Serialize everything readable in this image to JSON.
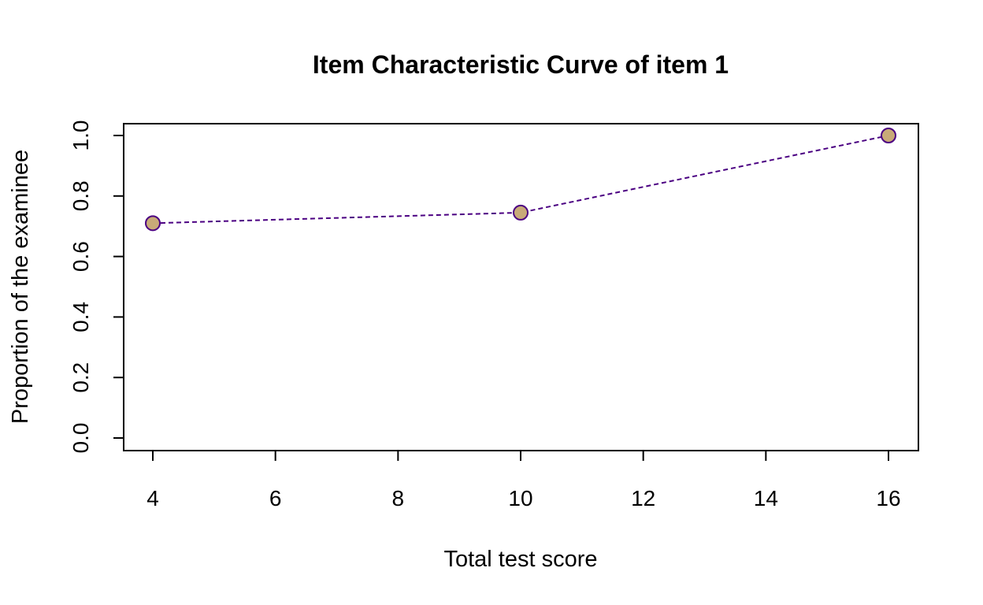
{
  "chart_data": {
    "type": "line",
    "title": "Item Characteristic Curve of item 1",
    "xlabel": "Total test score",
    "ylabel": "Proportion of the examinee",
    "xlim": [
      4,
      16
    ],
    "ylim": [
      0,
      1
    ],
    "x_ticks": [
      "4",
      "6",
      "8",
      "10",
      "12",
      "14",
      "16"
    ],
    "y_ticks": [
      "0.0",
      "0.2",
      "0.4",
      "0.6",
      "0.8",
      "1.0"
    ],
    "grid": false,
    "series": [
      {
        "x": [
          4,
          10,
          16
        ],
        "y": [
          0.71,
          0.745,
          1.0
        ],
        "line_style": "dashed",
        "line_color": "#4b0082",
        "marker_fill": "#c8aa78",
        "marker_edge": "#4b0082"
      }
    ]
  }
}
